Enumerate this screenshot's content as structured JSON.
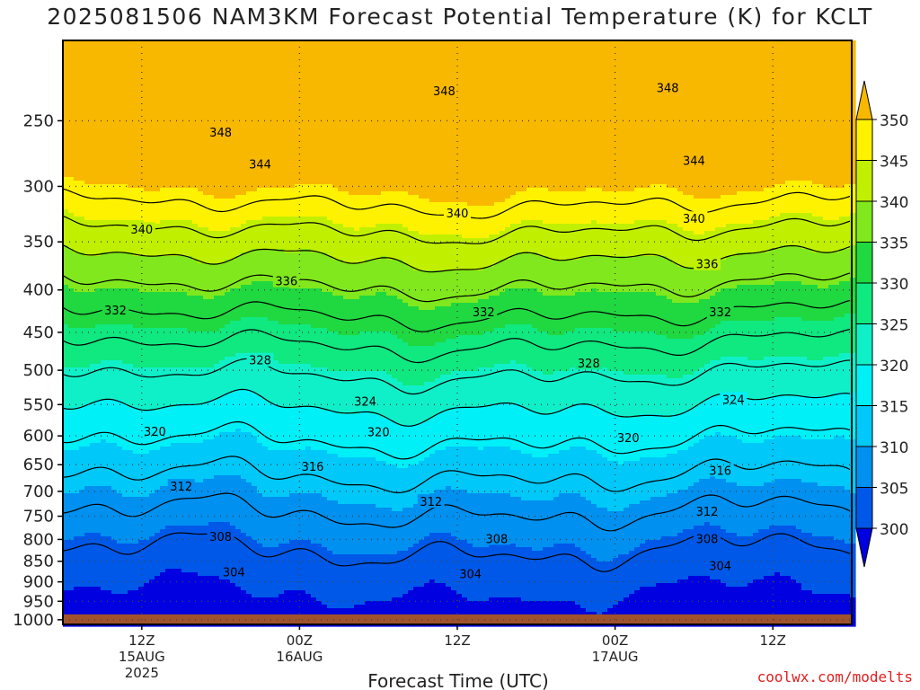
{
  "chart_data": {
    "type": "heatmap",
    "title": "2025081506 NAM3KM Forecast Potential Temperature (K) for KCLT",
    "xlabel": "Forecast Time (UTC)",
    "ylabel": "",
    "watermark": "coolwx.com/modelts",
    "x_ticks": [
      {
        "label": "12Z",
        "sub1": "15AUG",
        "sub2": "2025",
        "hour": 6
      },
      {
        "label": "00Z",
        "sub1": "16AUG",
        "sub2": "",
        "hour": 18
      },
      {
        "label": "12Z",
        "sub1": "",
        "sub2": "",
        "hour": 30
      },
      {
        "label": "00Z",
        "sub1": "17AUG",
        "sub2": "",
        "hour": 42
      },
      {
        "label": "12Z",
        "sub1": "",
        "sub2": "",
        "hour": 54
      }
    ],
    "xlim_hours": [
      0,
      60
    ],
    "y_ticks_hPa": [
      250,
      300,
      350,
      400,
      450,
      500,
      550,
      600,
      650,
      700,
      750,
      800,
      850,
      900,
      950,
      1000
    ],
    "ylim_hPa": [
      200,
      1013
    ],
    "y_scale": "log-pressure",
    "colorbar": {
      "labels": [
        "350",
        "345",
        "340",
        "335",
        "330",
        "325",
        "320",
        "315",
        "310",
        "305",
        "300"
      ],
      "bands": [
        {
          "min": 345,
          "max": 350,
          "color": "#fff200"
        },
        {
          "min": 340,
          "max": 345,
          "color": "#c0f000"
        },
        {
          "min": 335,
          "max": 340,
          "color": "#80e81c"
        },
        {
          "min": 330,
          "max": 335,
          "color": "#20d840"
        },
        {
          "min": 325,
          "max": 330,
          "color": "#10e880"
        },
        {
          "min": 320,
          "max": 325,
          "color": "#10f0c8"
        },
        {
          "min": 315,
          "max": 320,
          "color": "#00f0f8"
        },
        {
          "min": 310,
          "max": 315,
          "color": "#00c8f8"
        },
        {
          "min": 305,
          "max": 310,
          "color": "#0090f0"
        },
        {
          "min": 300,
          "max": 305,
          "color": "#0058e8"
        }
      ],
      "top_color": "#f8b800",
      "bottom_color": "#0000e0"
    },
    "contour_levels_K": [
      304,
      308,
      312,
      316,
      320,
      324,
      328,
      332,
      336,
      340,
      344,
      348
    ],
    "contour_labels": [
      {
        "text": "348",
        "p": 258,
        "hour": 12
      },
      {
        "text": "348",
        "p": 230,
        "hour": 29
      },
      {
        "text": "348",
        "p": 228,
        "hour": 46
      },
      {
        "text": "344",
        "p": 282,
        "hour": 15
      },
      {
        "text": "344",
        "p": 279,
        "hour": 48
      },
      {
        "text": "340",
        "p": 323,
        "hour": 30
      },
      {
        "text": "340",
        "p": 338,
        "hour": 6
      },
      {
        "text": "340",
        "p": 328,
        "hour": 48
      },
      {
        "text": "336",
        "p": 390,
        "hour": 17
      },
      {
        "text": "336",
        "p": 372,
        "hour": 49
      },
      {
        "text": "332",
        "p": 423,
        "hour": 4
      },
      {
        "text": "332",
        "p": 425,
        "hour": 32
      },
      {
        "text": "332",
        "p": 425,
        "hour": 50
      },
      {
        "text": "328",
        "p": 486,
        "hour": 15
      },
      {
        "text": "328",
        "p": 490,
        "hour": 40
      },
      {
        "text": "324",
        "p": 545,
        "hour": 23
      },
      {
        "text": "324",
        "p": 542,
        "hour": 51
      },
      {
        "text": "320",
        "p": 592,
        "hour": 7
      },
      {
        "text": "320",
        "p": 593,
        "hour": 24
      },
      {
        "text": "320",
        "p": 603,
        "hour": 43
      },
      {
        "text": "316",
        "p": 653,
        "hour": 19
      },
      {
        "text": "316",
        "p": 660,
        "hour": 50
      },
      {
        "text": "312",
        "p": 690,
        "hour": 9
      },
      {
        "text": "312",
        "p": 720,
        "hour": 28
      },
      {
        "text": "312",
        "p": 740,
        "hour": 49
      },
      {
        "text": "308",
        "p": 793,
        "hour": 12
      },
      {
        "text": "308",
        "p": 798,
        "hour": 33
      },
      {
        "text": "308",
        "p": 798,
        "hour": 49
      },
      {
        "text": "304",
        "p": 875,
        "hour": 13
      },
      {
        "text": "304",
        "p": 880,
        "hour": 31
      },
      {
        "text": "304",
        "p": 860,
        "hour": 50
      }
    ],
    "grid": true,
    "grid_style": "dotted"
  }
}
